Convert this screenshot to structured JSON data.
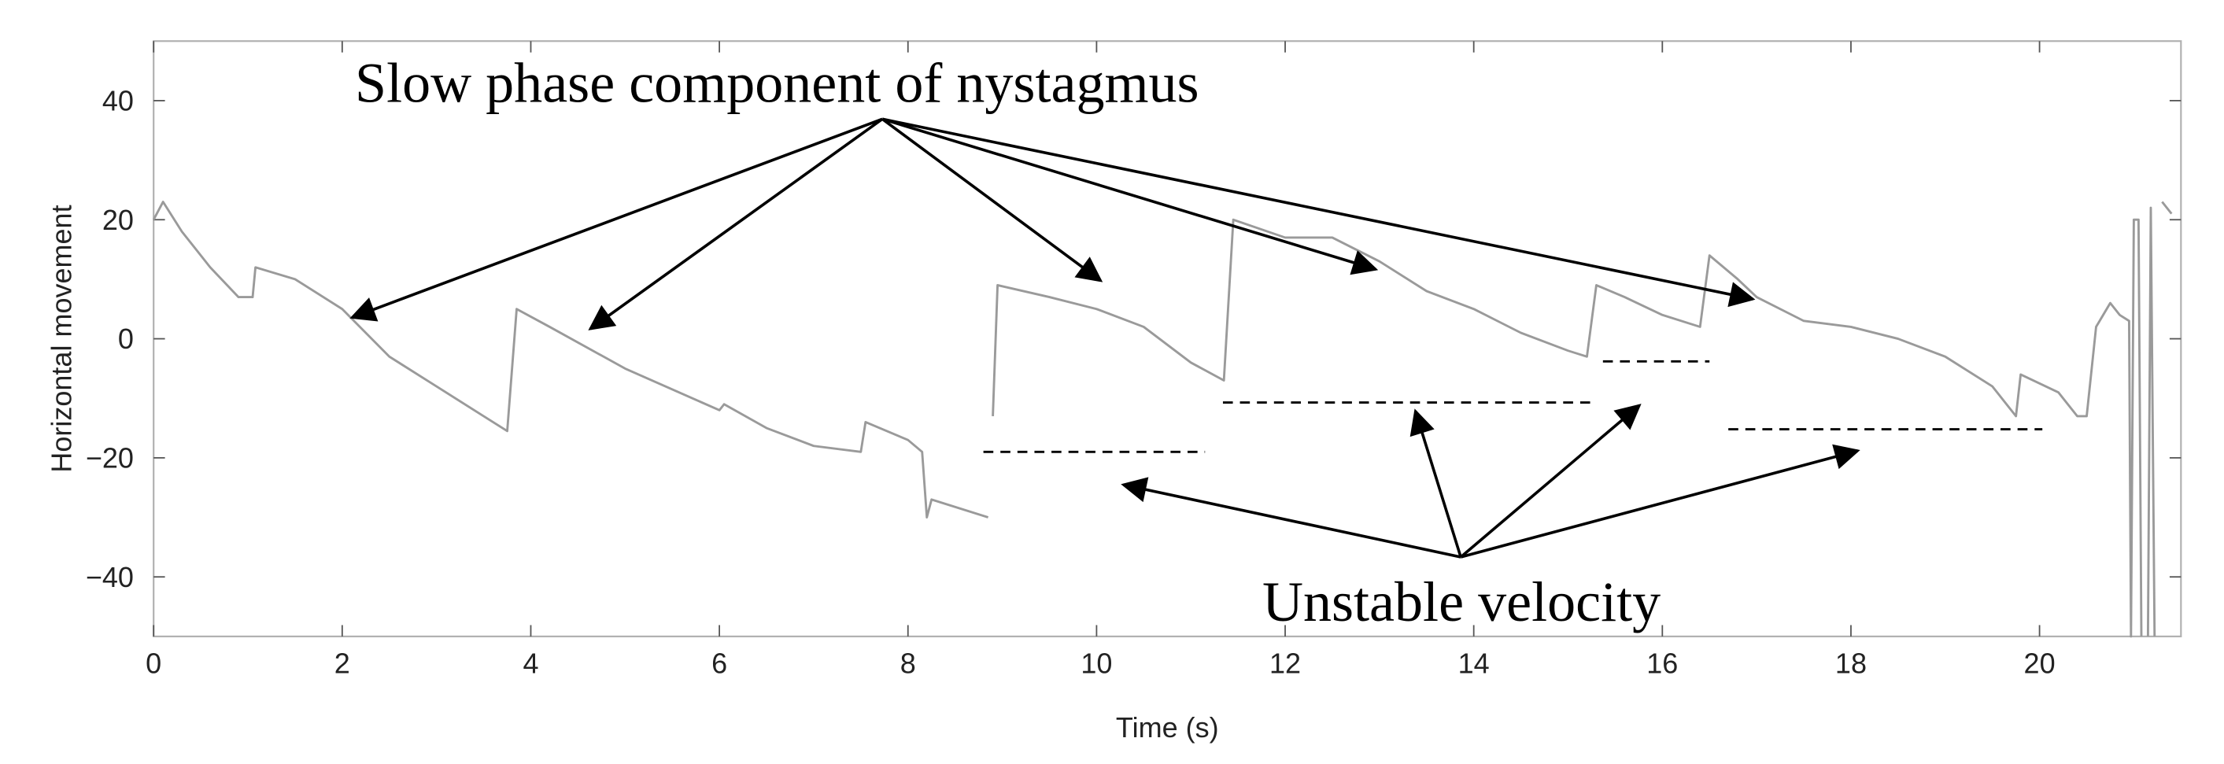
{
  "chart_data": {
    "type": "line",
    "xlabel": "Time (s)",
    "ylabel": "Horizontal movement",
    "xlim": [
      0,
      21.5
    ],
    "ylim": [
      -50,
      50
    ],
    "xticks": [
      0,
      2,
      4,
      6,
      8,
      10,
      12,
      14,
      16,
      18,
      20
    ],
    "yticks": [
      {
        "value": -40,
        "label": "−40"
      },
      {
        "value": -20,
        "label": "−20"
      },
      0,
      20,
      40
    ],
    "color": "#9a9a9a",
    "x": [
      0,
      0.1,
      0.3,
      0.6,
      0.9,
      1.05,
      1.08,
      1.5,
      2,
      2.5,
      3,
      3.5,
      3.75,
      3.85,
      4.2,
      5,
      6,
      6.05,
      6.5,
      7,
      7.5,
      7.55,
      8,
      8.15,
      8.2,
      8.25,
      8.85,
      8.87,
      8.9,
      8.95,
      9.5,
      10,
      10.5,
      11,
      11.35,
      11.45,
      12,
      12.5,
      13,
      13.5,
      14,
      14.5,
      15,
      15.2,
      15.3,
      15.6,
      16,
      16.4,
      16.5,
      16.8,
      17,
      17.5,
      18,
      18.5,
      19,
      19.5,
      19.75,
      19.8,
      20.2,
      20.4,
      20.5,
      20.6,
      20.75,
      20.85,
      20.95,
      20.97,
      21.0,
      21.05,
      21.08,
      21.12,
      21.15,
      21.18,
      21.22,
      21.26,
      21.3,
      21.4
    ],
    "values": [
      20,
      23,
      18,
      12,
      7,
      7,
      12,
      10,
      5,
      -3,
      -8,
      -13,
      -15.5,
      5,
      2,
      -5,
      -12,
      -11,
      -15,
      -18,
      -19,
      -14,
      -17,
      -19,
      -30,
      -27,
      -30,
      null,
      -13,
      9,
      7,
      5,
      2,
      -4,
      -7,
      20,
      17,
      17,
      13,
      8,
      5,
      1,
      -2,
      -3,
      9,
      7,
      4,
      2,
      14,
      10,
      7,
      3,
      2,
      0,
      -3,
      -8,
      -13,
      -6,
      -9,
      -13,
      -13,
      2,
      6,
      4,
      3,
      -50,
      20,
      20,
      -50,
      null,
      -50,
      22,
      -50,
      null,
      23,
      21
    ],
    "reference_lines": [
      {
        "x": [
          8.8,
          11.15
        ],
        "y": -19
      },
      {
        "x": [
          11.34,
          15.29
        ],
        "y": -10.7
      },
      {
        "x": [
          15.37,
          16.5
        ],
        "y": -3.8
      },
      {
        "x": [
          16.7,
          20.03
        ],
        "y": -15.2
      }
    ],
    "annotations": [
      "Slow phase component of nystagmus",
      "Unstable velocity"
    ]
  }
}
